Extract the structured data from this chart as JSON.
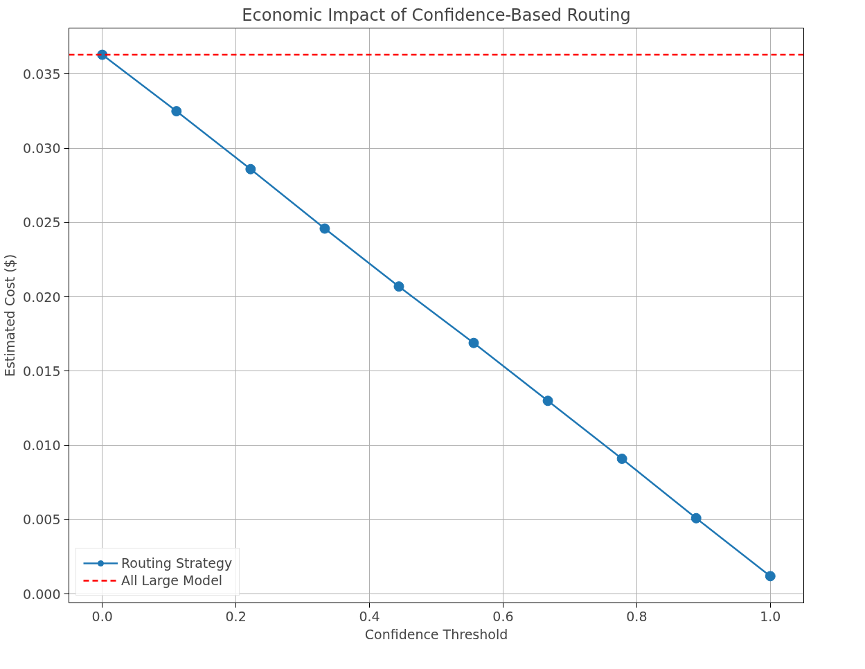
{
  "chart_data": {
    "type": "line",
    "title": "Economic Impact of Confidence-Based Routing",
    "xlabel": "Confidence Threshold",
    "ylabel": "Estimated Cost ($)",
    "x": [
      0.0,
      0.111,
      0.222,
      0.333,
      0.444,
      0.556,
      0.667,
      0.778,
      0.889,
      1.0
    ],
    "series": [
      {
        "name": "Routing Strategy",
        "color": "#1f77b4",
        "values": [
          0.0363,
          0.0325,
          0.0286,
          0.0246,
          0.0207,
          0.0169,
          0.013,
          0.0091,
          0.0051,
          0.0012
        ]
      }
    ],
    "ref_lines": [
      {
        "axis": "y",
        "value": 0.0363,
        "label": "All Large Model",
        "color": "#ff0000",
        "line_style": "dashed"
      }
    ],
    "xlim": [
      -0.05,
      1.05
    ],
    "ylim": [
      -0.0006,
      0.0381
    ],
    "xticks": [
      {
        "value": 0,
        "label": "0.0"
      },
      {
        "value": 0.2,
        "label": "0.2"
      },
      {
        "value": 0.4,
        "label": "0.4"
      },
      {
        "value": 0.6,
        "label": "0.6"
      },
      {
        "value": 0.8,
        "label": "0.8"
      },
      {
        "value": 1,
        "label": "1.0"
      }
    ],
    "yticks": [
      {
        "value": 0,
        "label": "0.000"
      },
      {
        "value": 0.005,
        "label": "0.005"
      },
      {
        "value": 0.01,
        "label": "0.010"
      },
      {
        "value": 0.015,
        "label": "0.015"
      },
      {
        "value": 0.02,
        "label": "0.020"
      },
      {
        "value": 0.025,
        "label": "0.025"
      },
      {
        "value": 0.03,
        "label": "0.030"
      },
      {
        "value": 0.035,
        "label": "0.035"
      }
    ],
    "grid": true,
    "legend": "bottom left",
    "marker": "circle",
    "line_style": "solid"
  }
}
